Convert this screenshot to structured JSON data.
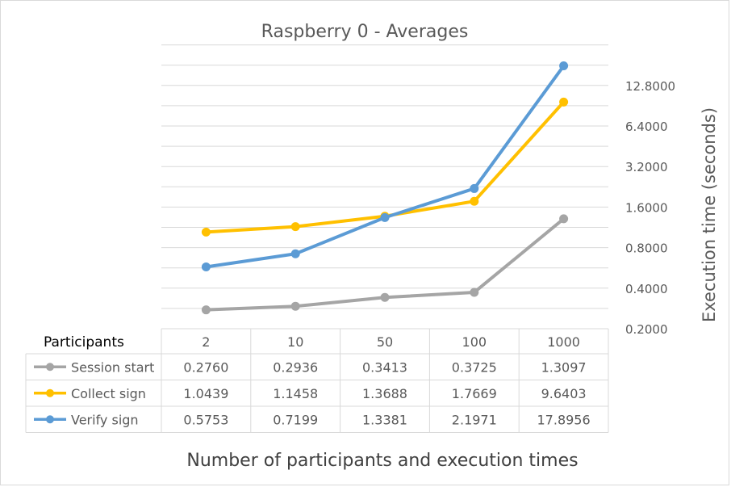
{
  "chart_data": {
    "type": "line",
    "title": "Raspberry 0 - Averages",
    "xlabel": "Number of participants and execution times",
    "ylabel": "Execution time (seconds)",
    "y_scale": "log2",
    "ylim": [
      0.2,
      25.6
    ],
    "y_ticks": [
      "0.2000",
      "0.4000",
      "0.8000",
      "1.6000",
      "3.2000",
      "6.4000",
      "12.8000"
    ],
    "grid": true,
    "legend": "data-table-left",
    "categories": [
      "2",
      "10",
      "50",
      "100",
      "1000"
    ],
    "table_header": "Participants",
    "series": [
      {
        "name": "Session start",
        "color": "#a5a5a5",
        "values": [
          0.276,
          0.2936,
          0.3413,
          0.3725,
          1.3097
        ],
        "labels": [
          "0.2760",
          "0.2936",
          "0.3413",
          "0.3725",
          "1.3097"
        ]
      },
      {
        "name": "Collect sign",
        "color": "#ffc000",
        "values": [
          1.0439,
          1.1458,
          1.3688,
          1.7669,
          9.6403
        ],
        "labels": [
          "1.0439",
          "1.1458",
          "1.3688",
          "1.7669",
          "9.6403"
        ]
      },
      {
        "name": "Verify sign",
        "color": "#5b9bd5",
        "values": [
          0.5753,
          0.7199,
          1.3381,
          2.1971,
          17.8956
        ],
        "labels": [
          "0.5753",
          "0.7199",
          "1.3381",
          "2.1971",
          "17.8956"
        ]
      }
    ]
  }
}
